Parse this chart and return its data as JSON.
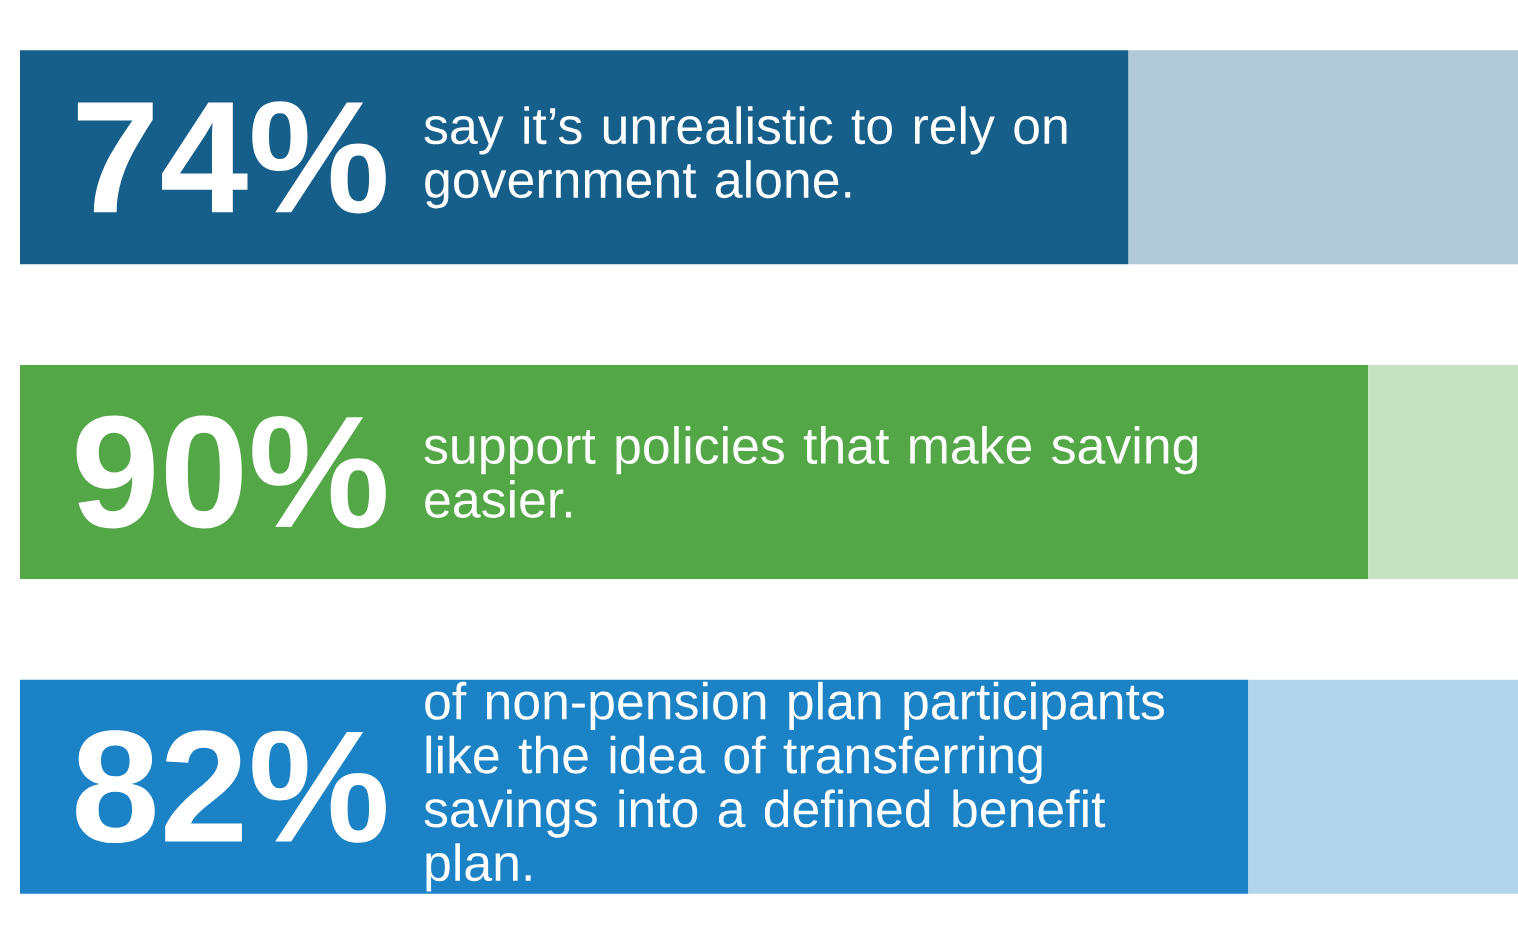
{
  "chart_data": {
    "type": "bar",
    "orientation": "horizontal",
    "stacked": true,
    "categories": [
      "say it’s unrealistic to rely on government alone.",
      "support policies that make saving easier.",
      "of non-pension plan participants like the idea of transferring savings into a defined benefit plan."
    ],
    "series": [
      {
        "colors": [
          "#155f8a",
          "#53a746",
          "#1b82c6"
        ],
        "values": [
          74,
          90,
          82
        ],
        "value_labels": [
          "74%",
          "90%",
          "82%"
        ]
      },
      {
        "colors": [
          "#b0c9d9",
          "#c5e2c2",
          "#b3d5ec"
        ],
        "values": [
          26,
          10,
          18
        ]
      }
    ],
    "xlim": [
      0,
      100
    ],
    "tick_labels": false
  }
}
